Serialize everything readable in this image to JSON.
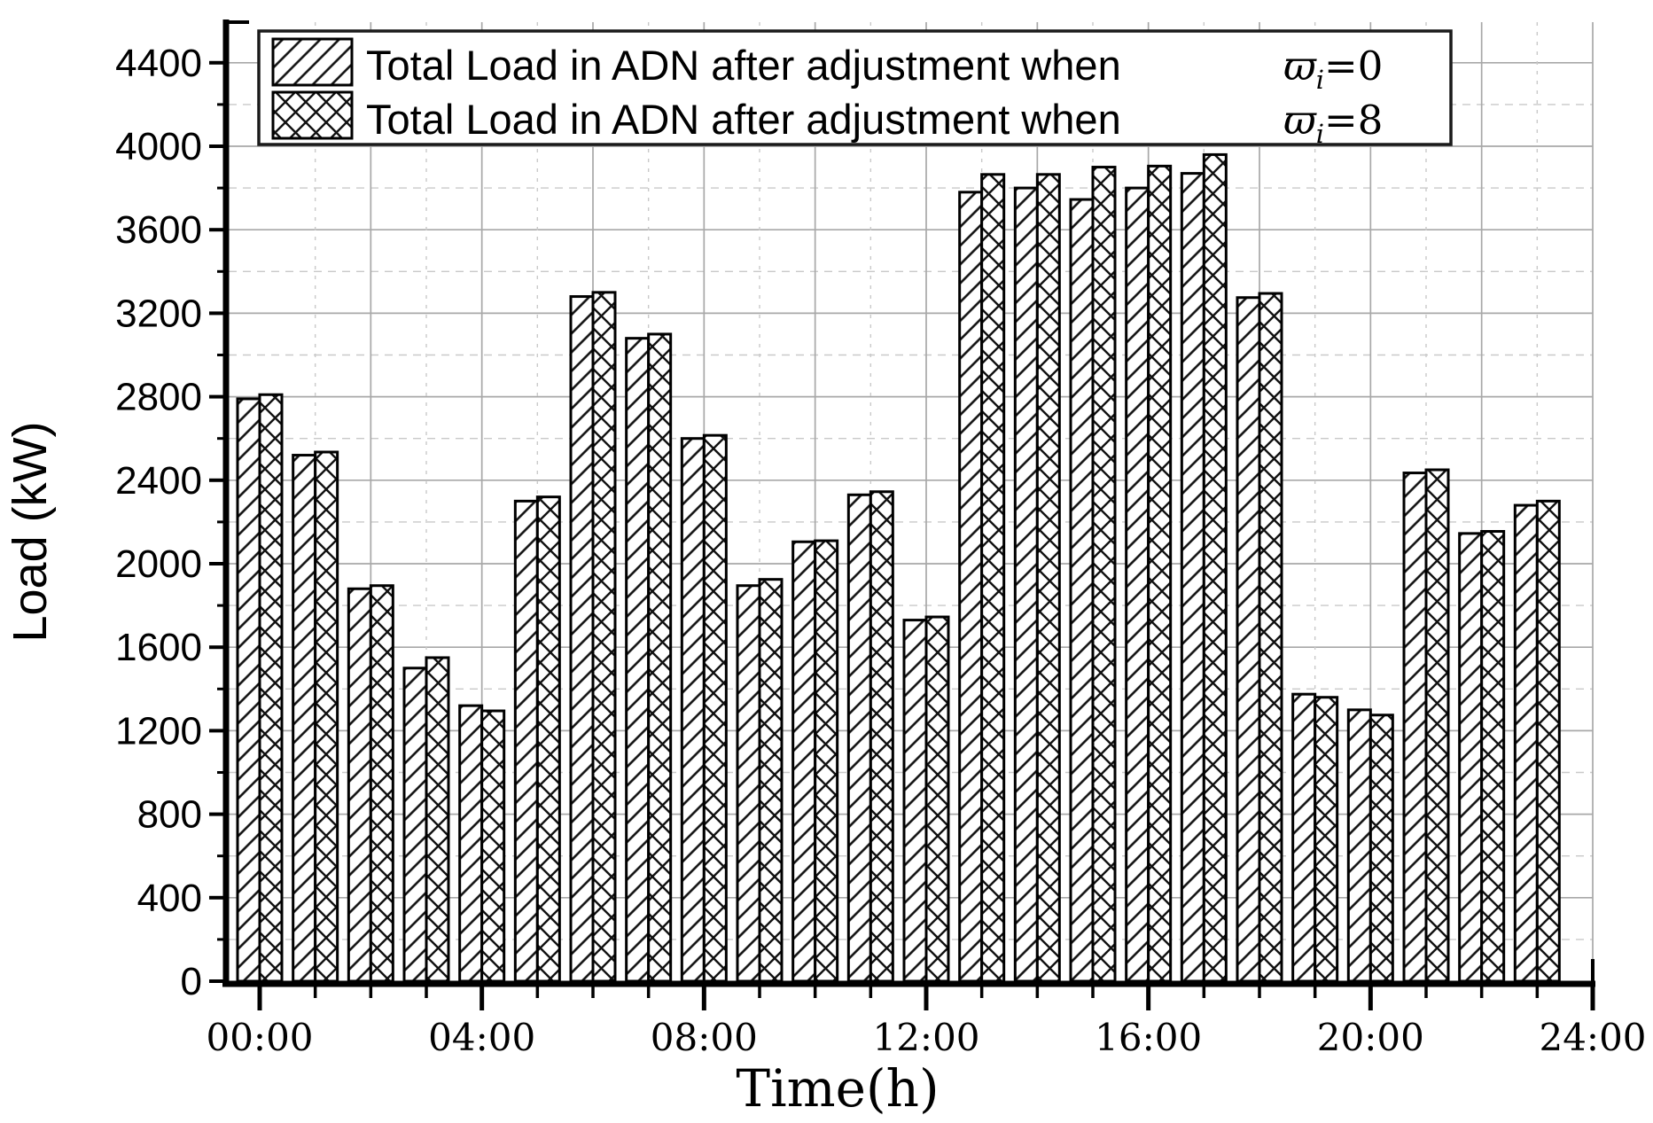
{
  "figure": {
    "ylabel": "Load (kW)",
    "xlabel": "Time(h)",
    "legend": {
      "entries": [
        {
          "text": "Total Load in ADN after adjustment when",
          "symbol": "ϖ",
          "subscript": "i",
          "eq": "=0",
          "pattern": "diagonal-hatch"
        },
        {
          "text": "Total Load in ADN after adjustment when",
          "symbol": "ϖ",
          "subscript": "i",
          "eq": "=8",
          "pattern": "cross-hatch"
        }
      ]
    },
    "colors": {
      "axis": "#000000",
      "grid_major": "#a8a8a8",
      "grid_minor": "#c9c9c9",
      "bar_fill": "#ffffff",
      "hatch": "#111111",
      "legend_border": "#1a1a1a"
    }
  },
  "chart_data": {
    "type": "bar",
    "title": "",
    "xlabel": "Time(h)",
    "ylabel": "Load (kW)",
    "categories": [
      "00:00",
      "01:00",
      "02:00",
      "03:00",
      "04:00",
      "05:00",
      "06:00",
      "07:00",
      "08:00",
      "09:00",
      "10:00",
      "11:00",
      "12:00",
      "13:00",
      "14:00",
      "15:00",
      "16:00",
      "17:00",
      "18:00",
      "19:00",
      "20:00",
      "21:00",
      "22:00",
      "23:00"
    ],
    "series": [
      {
        "name": "Total Load in ADN after adjustment when ϖi=0",
        "pattern": "diagonal-hatch",
        "values": [
          2790,
          2520,
          1880,
          1500,
          1320,
          2300,
          3280,
          3080,
          2600,
          1895,
          2105,
          2330,
          1730,
          3780,
          3800,
          3745,
          3800,
          3870,
          3275,
          1375,
          1300,
          2435,
          2145,
          2280
        ]
      },
      {
        "name": "Total Load in ADN after adjustment when ϖi=8",
        "pattern": "cross-hatch",
        "values": [
          2810,
          2535,
          1895,
          1550,
          1295,
          2320,
          3300,
          3100,
          2615,
          1925,
          2110,
          2345,
          1745,
          3865,
          3865,
          3900,
          3905,
          3960,
          3295,
          1360,
          1275,
          2450,
          2155,
          2300
        ]
      }
    ],
    "ylim": [
      0,
      4600
    ],
    "ytick_major_step": 400,
    "ytick_minor_step": 200,
    "ytick_labels": [
      "0",
      "400",
      "800",
      "1200",
      "1600",
      "2000",
      "2400",
      "2800",
      "3200",
      "3600",
      "4000",
      "4400"
    ],
    "xtick_major_labels": [
      "00:00",
      "04:00",
      "08:00",
      "12:00",
      "16:00",
      "20:00",
      "24:00"
    ],
    "xtick_hours_total": 24,
    "grid": "horizontal major solid every 400, minor dashed every 200; vertical solid at even hours, dashed at odd hours",
    "legend_position": "top inside plot"
  }
}
